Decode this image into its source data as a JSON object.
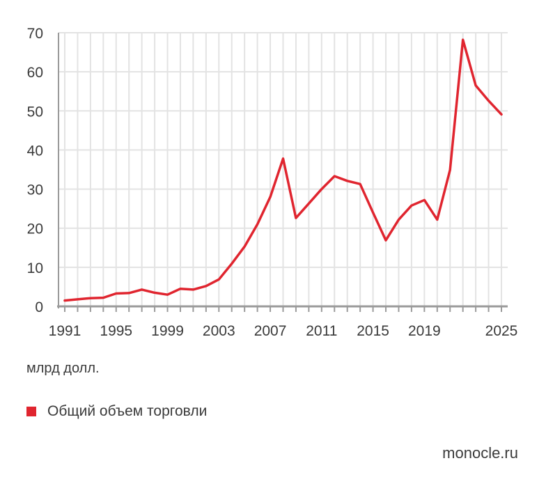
{
  "chart_data": {
    "type": "line",
    "title": "",
    "xlabel": "",
    "ylabel": "",
    "unit_label": "млрд долл.",
    "xlim": [
      1991,
      2025
    ],
    "ylim": [
      0,
      70
    ],
    "x_ticks": [
      1991,
      1995,
      1999,
      2003,
      2007,
      2011,
      2015,
      2019,
      2025
    ],
    "y_ticks": [
      0,
      10,
      20,
      30,
      40,
      50,
      60,
      70
    ],
    "grid": true,
    "legend_position": "bottom-left",
    "series": [
      {
        "name": "Общий объем торговли",
        "color": "#e0252f",
        "x": [
          1991,
          1992,
          1993,
          1994,
          1995,
          1996,
          1997,
          1998,
          1999,
          2000,
          2001,
          2002,
          2003,
          2004,
          2005,
          2006,
          2007,
          2008,
          2009,
          2010,
          2011,
          2012,
          2013,
          2014,
          2015,
          2016,
          2017,
          2018,
          2019,
          2020,
          2021,
          2022,
          2023,
          2024,
          2025
        ],
        "values": [
          1.5,
          1.8,
          2.1,
          2.2,
          3.3,
          3.4,
          4.3,
          3.5,
          3.0,
          4.5,
          4.3,
          5.2,
          6.9,
          10.9,
          15.3,
          21.0,
          28.0,
          37.8,
          22.6,
          26.3,
          30.0,
          33.3,
          32.1,
          31.3,
          24.0,
          16.9,
          22.2,
          25.8,
          27.2,
          22.2,
          34.9,
          68.2,
          56.5,
          52.6,
          49.1
        ]
      }
    ]
  },
  "footer": {
    "source": "monocle.ru"
  }
}
